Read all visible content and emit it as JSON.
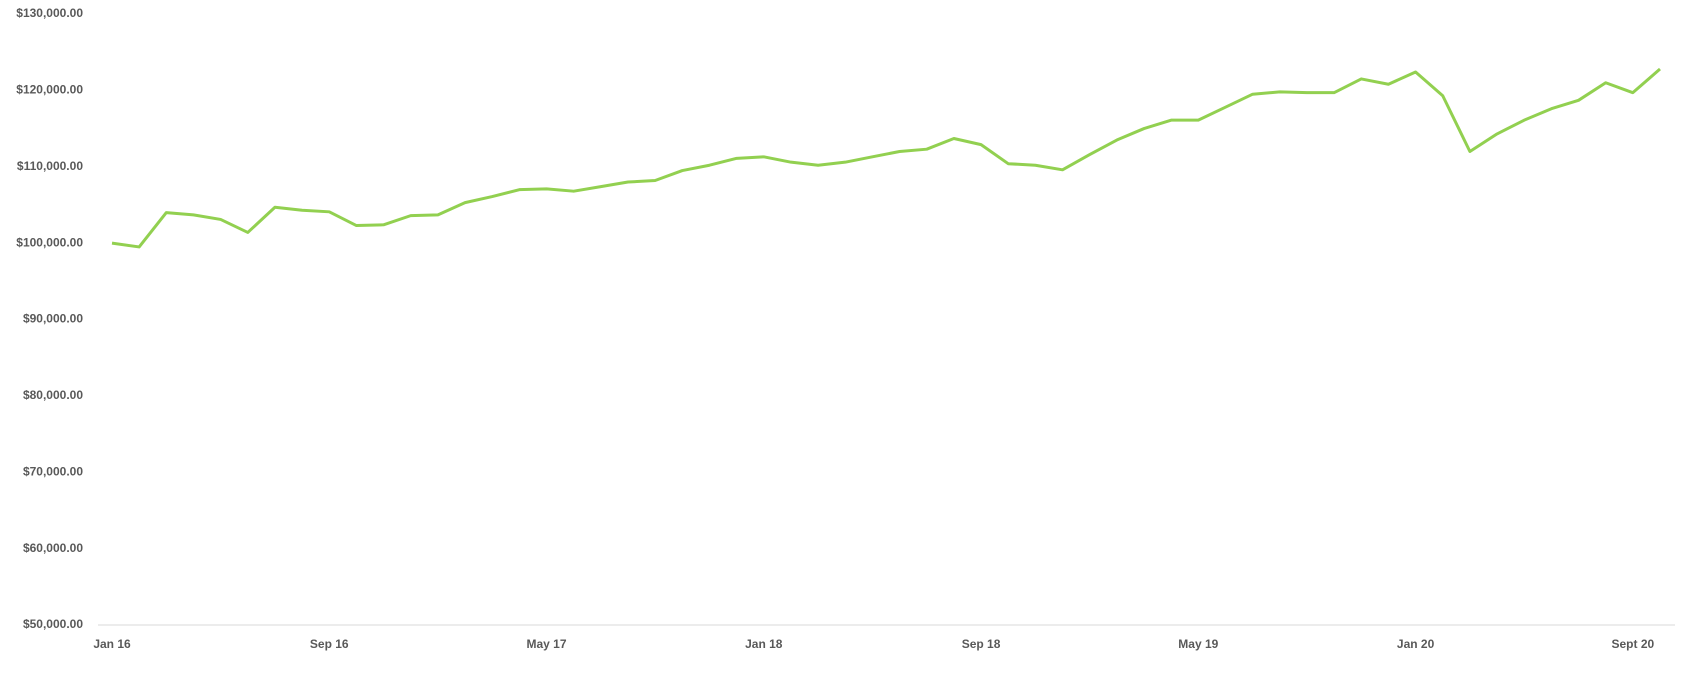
{
  "chart_data": {
    "type": "line",
    "categories": [
      "Jan 16",
      null,
      null,
      null,
      null,
      null,
      null,
      null,
      "Sep 16",
      null,
      null,
      null,
      null,
      null,
      null,
      null,
      "May 17",
      null,
      null,
      null,
      null,
      null,
      null,
      null,
      "Jan 18",
      null,
      null,
      null,
      null,
      null,
      null,
      null,
      "Sep 18",
      null,
      null,
      null,
      null,
      null,
      null,
      null,
      "May 19",
      null,
      null,
      null,
      null,
      null,
      null,
      null,
      "Jan 20",
      null,
      null,
      null,
      null,
      null,
      null,
      null,
      "Sept 20",
      null
    ],
    "series": [
      {
        "color": "#92d050",
        "values": [
          100000,
          99500,
          104000,
          103700,
          103100,
          101400,
          104700,
          104300,
          104100,
          102300,
          102400,
          103600,
          103700,
          105300,
          106100,
          107000,
          107100,
          106800,
          107400,
          108000,
          108200,
          109500,
          110200,
          111100,
          111300,
          110600,
          110200,
          110600,
          111300,
          112000,
          112300,
          113700,
          112900,
          110400,
          110200,
          109600,
          111600,
          113500,
          115000,
          116100,
          116100,
          117800,
          119500,
          119800,
          119700,
          119700,
          121500,
          120800,
          122400,
          119300,
          112000,
          114300,
          116100,
          117600,
          118700,
          121000,
          119700,
          122800
        ]
      }
    ],
    "ylim": [
      50000,
      130000
    ],
    "yticks": [
      {
        "value": 50000,
        "label": "$50,000.00"
      },
      {
        "value": 60000,
        "label": "$60,000.00"
      },
      {
        "value": 70000,
        "label": "$70,000.00"
      },
      {
        "value": 80000,
        "label": "$80,000.00"
      },
      {
        "value": 90000,
        "label": "$90,000.00"
      },
      {
        "value": 100000,
        "label": "$100,000.00"
      },
      {
        "value": 110000,
        "label": "$110,000.00"
      },
      {
        "value": 120000,
        "label": "$120,000.00"
      },
      {
        "value": 130000,
        "label": "$130,000.00"
      }
    ]
  }
}
